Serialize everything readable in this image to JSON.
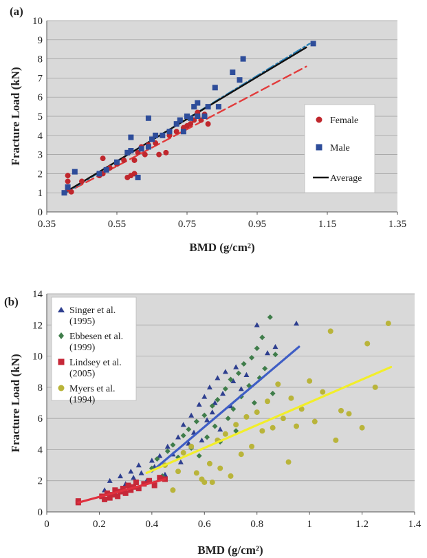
{
  "chart_data": [
    {
      "panel_label": "(a)",
      "type": "scatter",
      "xlabel": "BMD (g/cm²)",
      "ylabel": "Fracture Load (kN)",
      "xlim": [
        0.35,
        1.35
      ],
      "ylim": [
        0,
        10
      ],
      "x_ticks": [
        "0.35",
        "0.55",
        "0.75",
        "0.95",
        "1.15",
        "1.35"
      ],
      "y_ticks": [
        "0",
        "1",
        "2",
        "3",
        "4",
        "5",
        "6",
        "7",
        "8",
        "9",
        "10"
      ],
      "grid": true,
      "legend_position": "right",
      "legend": [
        {
          "label": "Female",
          "marker": "circle",
          "color": "#c0272d"
        },
        {
          "label": "Male",
          "marker": "square",
          "color": "#2e4d9a"
        },
        {
          "label": "Average",
          "marker": "line",
          "color": "#111111"
        }
      ],
      "series": [
        {
          "name": "Female",
          "kind": "points",
          "marker": "circle",
          "color": "#c0272d",
          "points": [
            [
              0.41,
              1.2
            ],
            [
              0.41,
              1.6
            ],
            [
              0.42,
              1.05
            ],
            [
              0.41,
              1.9
            ],
            [
              0.45,
              1.6
            ],
            [
              0.5,
              1.9
            ],
            [
              0.51,
              2.0
            ],
            [
              0.51,
              2.8
            ],
            [
              0.53,
              2.3
            ],
            [
              0.55,
              2.5
            ],
            [
              0.57,
              2.7
            ],
            [
              0.58,
              1.8
            ],
            [
              0.59,
              1.9
            ],
            [
              0.6,
              2.0
            ],
            [
              0.6,
              2.7
            ],
            [
              0.61,
              3.1
            ],
            [
              0.62,
              3.4
            ],
            [
              0.63,
              3.0
            ],
            [
              0.64,
              3.5
            ],
            [
              0.66,
              3.6
            ],
            [
              0.67,
              3.0
            ],
            [
              0.69,
              3.1
            ],
            [
              0.7,
              4.0
            ],
            [
              0.72,
              4.2
            ],
            [
              0.74,
              4.4
            ],
            [
              0.75,
              4.5
            ],
            [
              0.76,
              4.6
            ],
            [
              0.77,
              4.8
            ],
            [
              0.78,
              5.2
            ],
            [
              0.78,
              5.0
            ],
            [
              0.79,
              4.8
            ],
            [
              0.8,
              5.1
            ],
            [
              0.81,
              4.6
            ]
          ]
        },
        {
          "name": "Male",
          "kind": "points",
          "marker": "square",
          "color": "#2e4d9a",
          "points": [
            [
              0.4,
              1.0
            ],
            [
              0.41,
              1.3
            ],
            [
              0.43,
              2.1
            ],
            [
              0.5,
              2.0
            ],
            [
              0.52,
              2.2
            ],
            [
              0.55,
              2.6
            ],
            [
              0.58,
              3.1
            ],
            [
              0.59,
              3.2
            ],
            [
              0.59,
              3.9
            ],
            [
              0.61,
              1.8
            ],
            [
              0.62,
              3.3
            ],
            [
              0.64,
              3.4
            ],
            [
              0.64,
              4.9
            ],
            [
              0.65,
              3.8
            ],
            [
              0.66,
              4.0
            ],
            [
              0.68,
              4.0
            ],
            [
              0.7,
              4.2
            ],
            [
              0.72,
              4.6
            ],
            [
              0.73,
              4.8
            ],
            [
              0.74,
              4.2
            ],
            [
              0.75,
              5.0
            ],
            [
              0.76,
              4.9
            ],
            [
              0.77,
              5.5
            ],
            [
              0.78,
              5.7
            ],
            [
              0.78,
              5.0
            ],
            [
              0.8,
              5.0
            ],
            [
              0.81,
              5.5
            ],
            [
              0.83,
              6.5
            ],
            [
              0.84,
              5.5
            ],
            [
              0.88,
              7.3
            ],
            [
              0.9,
              6.9
            ],
            [
              0.91,
              8.0
            ],
            [
              1.11,
              8.8
            ]
          ]
        },
        {
          "name": "Female",
          "kind": "fit",
          "style": "dashed",
          "color": "#e23b3b",
          "points": [
            [
              0.4,
              0.95
            ],
            [
              1.09,
              7.6
            ]
          ]
        },
        {
          "name": "Male",
          "kind": "fit",
          "style": "dashdot",
          "color": "#2a82b7",
          "points": [
            [
              0.4,
              0.95
            ],
            [
              1.1,
              8.8
            ]
          ]
        },
        {
          "name": "Average",
          "kind": "fit",
          "style": "solid",
          "color": "#111111",
          "points": [
            [
              0.4,
              1.0
            ],
            [
              1.09,
              8.6
            ]
          ]
        }
      ]
    },
    {
      "panel_label": "(b)",
      "type": "scatter",
      "xlabel": "BMD (g/cm²)",
      "ylabel": "Fracture Load (kN)",
      "xlim": [
        0,
        1.4
      ],
      "ylim": [
        0,
        14
      ],
      "x_ticks": [
        "0",
        "0.2",
        "0.4",
        "0.6",
        "0.8",
        "1",
        "1.2",
        "1.4"
      ],
      "y_ticks": [
        "0",
        "2",
        "4",
        "6",
        "8",
        "10",
        "12",
        "14"
      ],
      "grid": true,
      "legend_position": "top-left",
      "legend": [
        {
          "label_lines": [
            "Singer et al.",
            "(1995)"
          ],
          "marker": "triangle",
          "color": "#2e3f8f"
        },
        {
          "label_lines": [
            "Ebbesen et al.",
            "(1999)"
          ],
          "marker": "diamond",
          "color": "#3f7d4a"
        },
        {
          "label_lines": [
            "Lindsey et al.",
            "(2005)"
          ],
          "marker": "square",
          "color": "#c62838"
        },
        {
          "label_lines": [
            "Myers et al.",
            "(1994)"
          ],
          "marker": "circle",
          "color": "#b9b43a"
        }
      ],
      "series": [
        {
          "name": "Singer et al. (1995)",
          "kind": "points",
          "marker": "triangle",
          "color": "#2e3f8f",
          "points": [
            [
              0.22,
              1.4
            ],
            [
              0.24,
              2.0
            ],
            [
              0.26,
              1.2
            ],
            [
              0.28,
              2.3
            ],
            [
              0.3,
              1.8
            ],
            [
              0.32,
              2.6
            ],
            [
              0.33,
              2.2
            ],
            [
              0.35,
              3.0
            ],
            [
              0.36,
              2.5
            ],
            [
              0.38,
              2.0
            ],
            [
              0.4,
              3.3
            ],
            [
              0.41,
              2.9
            ],
            [
              0.43,
              3.6
            ],
            [
              0.45,
              2.4
            ],
            [
              0.46,
              4.2
            ],
            [
              0.48,
              3.7
            ],
            [
              0.5,
              4.8
            ],
            [
              0.51,
              3.2
            ],
            [
              0.52,
              5.6
            ],
            [
              0.54,
              4.4
            ],
            [
              0.55,
              6.2
            ],
            [
              0.56,
              5.1
            ],
            [
              0.58,
              6.9
            ],
            [
              0.59,
              4.6
            ],
            [
              0.6,
              7.4
            ],
            [
              0.61,
              5.9
            ],
            [
              0.62,
              8.0
            ],
            [
              0.63,
              6.4
            ],
            [
              0.64,
              7.0
            ],
            [
              0.65,
              8.6
            ],
            [
              0.66,
              5.3
            ],
            [
              0.67,
              7.6
            ],
            [
              0.68,
              9.0
            ],
            [
              0.7,
              6.8
            ],
            [
              0.71,
              8.4
            ],
            [
              0.72,
              9.3
            ],
            [
              0.74,
              7.9
            ],
            [
              0.76,
              8.8
            ],
            [
              0.8,
              12.0
            ],
            [
              0.84,
              10.2
            ],
            [
              0.87,
              10.6
            ],
            [
              0.95,
              12.1
            ]
          ]
        },
        {
          "name": "Ebbesen et al. (1999)",
          "kind": "points",
          "marker": "diamond",
          "color": "#3f7d4a",
          "points": [
            [
              0.4,
              2.8
            ],
            [
              0.42,
              3.4
            ],
            [
              0.44,
              2.3
            ],
            [
              0.46,
              3.9
            ],
            [
              0.48,
              4.3
            ],
            [
              0.5,
              3.5
            ],
            [
              0.52,
              4.9
            ],
            [
              0.54,
              5.3
            ],
            [
              0.55,
              4.1
            ],
            [
              0.57,
              5.8
            ],
            [
              0.58,
              3.6
            ],
            [
              0.6,
              6.2
            ],
            [
              0.61,
              4.8
            ],
            [
              0.63,
              6.8
            ],
            [
              0.64,
              5.5
            ],
            [
              0.65,
              7.2
            ],
            [
              0.66,
              4.5
            ],
            [
              0.68,
              7.9
            ],
            [
              0.69,
              6.0
            ],
            [
              0.7,
              8.5
            ],
            [
              0.71,
              6.6
            ],
            [
              0.72,
              5.2
            ],
            [
              0.73,
              8.9
            ],
            [
              0.74,
              7.4
            ],
            [
              0.75,
              9.5
            ],
            [
              0.76,
              6.1
            ],
            [
              0.77,
              8.1
            ],
            [
              0.78,
              9.9
            ],
            [
              0.79,
              7.0
            ],
            [
              0.8,
              10.5
            ],
            [
              0.81,
              8.6
            ],
            [
              0.82,
              11.2
            ],
            [
              0.83,
              9.2
            ],
            [
              0.85,
              12.5
            ],
            [
              0.86,
              7.6
            ],
            [
              0.87,
              10.1
            ]
          ]
        },
        {
          "name": "Lindsey et al. (2005)",
          "kind": "points",
          "marker": "square",
          "color": "#c62838",
          "points": [
            [
              0.12,
              0.7
            ],
            [
              0.12,
              0.6
            ],
            [
              0.21,
              1.0
            ],
            [
              0.22,
              0.8
            ],
            [
              0.23,
              1.2
            ],
            [
              0.24,
              0.9
            ],
            [
              0.25,
              1.1
            ],
            [
              0.26,
              1.4
            ],
            [
              0.27,
              1.0
            ],
            [
              0.28,
              1.3
            ],
            [
              0.29,
              1.5
            ],
            [
              0.3,
              1.2
            ],
            [
              0.31,
              1.7
            ],
            [
              0.32,
              1.4
            ],
            [
              0.33,
              1.6
            ],
            [
              0.34,
              1.9
            ],
            [
              0.35,
              1.5
            ],
            [
              0.37,
              1.8
            ],
            [
              0.39,
              2.0
            ],
            [
              0.41,
              1.7
            ],
            [
              0.43,
              2.2
            ],
            [
              0.45,
              2.1
            ]
          ]
        },
        {
          "name": "Myers et al. (1994)",
          "kind": "points",
          "marker": "circle",
          "color": "#b9b43a",
          "points": [
            [
              0.45,
              3.0
            ],
            [
              0.48,
              1.4
            ],
            [
              0.5,
              2.6
            ],
            [
              0.52,
              3.8
            ],
            [
              0.55,
              4.2
            ],
            [
              0.57,
              2.5
            ],
            [
              0.59,
              2.1
            ],
            [
              0.6,
              1.9
            ],
            [
              0.62,
              3.1
            ],
            [
              0.63,
              1.9
            ],
            [
              0.65,
              4.6
            ],
            [
              0.66,
              2.8
            ],
            [
              0.68,
              5.0
            ],
            [
              0.7,
              2.3
            ],
            [
              0.72,
              5.6
            ],
            [
              0.74,
              3.7
            ],
            [
              0.76,
              6.1
            ],
            [
              0.78,
              4.2
            ],
            [
              0.8,
              6.4
            ],
            [
              0.82,
              5.2
            ],
            [
              0.84,
              7.1
            ],
            [
              0.86,
              5.4
            ],
            [
              0.88,
              8.2
            ],
            [
              0.9,
              6.0
            ],
            [
              0.92,
              3.2
            ],
            [
              0.93,
              7.3
            ],
            [
              0.95,
              5.5
            ],
            [
              0.97,
              6.6
            ],
            [
              1.0,
              8.4
            ],
            [
              1.02,
              5.8
            ],
            [
              1.05,
              7.7
            ],
            [
              1.08,
              11.6
            ],
            [
              1.1,
              4.6
            ],
            [
              1.12,
              6.5
            ],
            [
              1.15,
              6.3
            ],
            [
              1.2,
              5.4
            ],
            [
              1.22,
              10.8
            ],
            [
              1.25,
              8.0
            ],
            [
              1.3,
              12.1
            ]
          ]
        },
        {
          "name": "Lindsey et al. (2005)",
          "kind": "fit",
          "color": "#e0303e",
          "points": [
            [
              0.12,
              0.6
            ],
            [
              0.45,
              2.1
            ]
          ]
        },
        {
          "name": "Singer et al. (1995)",
          "kind": "fit",
          "color": "#3f5ec5",
          "points": [
            [
              0.4,
              2.6
            ],
            [
              0.96,
              10.6
            ]
          ]
        },
        {
          "name": "Myers et al. (1994)",
          "kind": "fit",
          "color": "#f2ee2a",
          "points": [
            [
              0.38,
              2.5
            ],
            [
              1.31,
              9.3
            ]
          ]
        }
      ]
    }
  ]
}
